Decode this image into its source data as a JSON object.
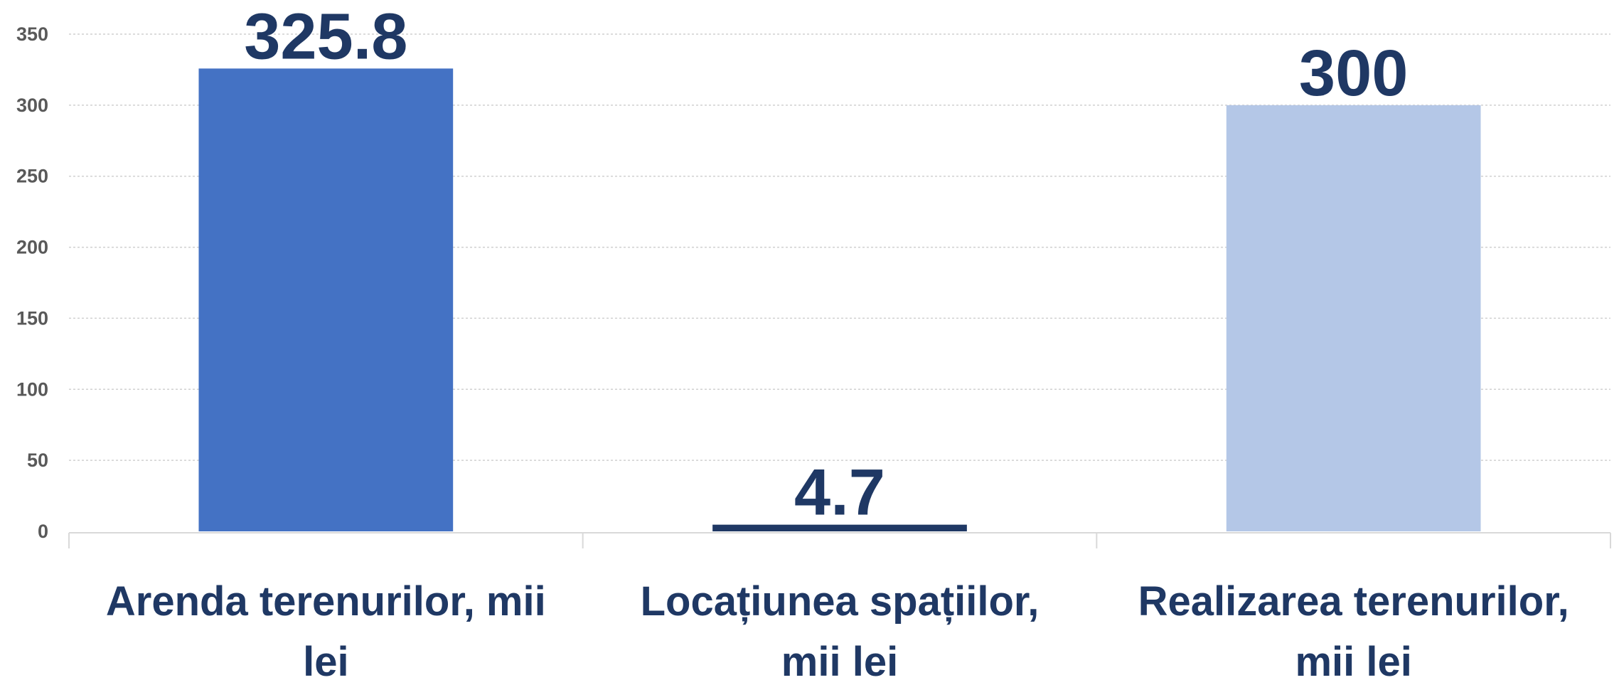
{
  "chart_data": {
    "type": "bar",
    "categories": [
      [
        "Arenda terenurilor, mii",
        "lei"
      ],
      [
        "Locațiunea spațiilor,",
        "mii lei"
      ],
      [
        "Realizarea terenurilor,",
        "mii lei"
      ]
    ],
    "values": [
      325.8,
      4.7,
      300
    ],
    "data_labels": [
      "325.8",
      "4.7",
      "300"
    ],
    "colors": [
      "#4472C4",
      "#1F3864",
      "#B4C7E7"
    ],
    "label_color": "#1F3864",
    "ylim": [
      0,
      350
    ],
    "yticks": [
      0,
      50,
      100,
      150,
      200,
      250,
      300,
      350
    ],
    "grid": true,
    "legend": "none",
    "title": "",
    "xlabel": "",
    "ylabel": ""
  }
}
